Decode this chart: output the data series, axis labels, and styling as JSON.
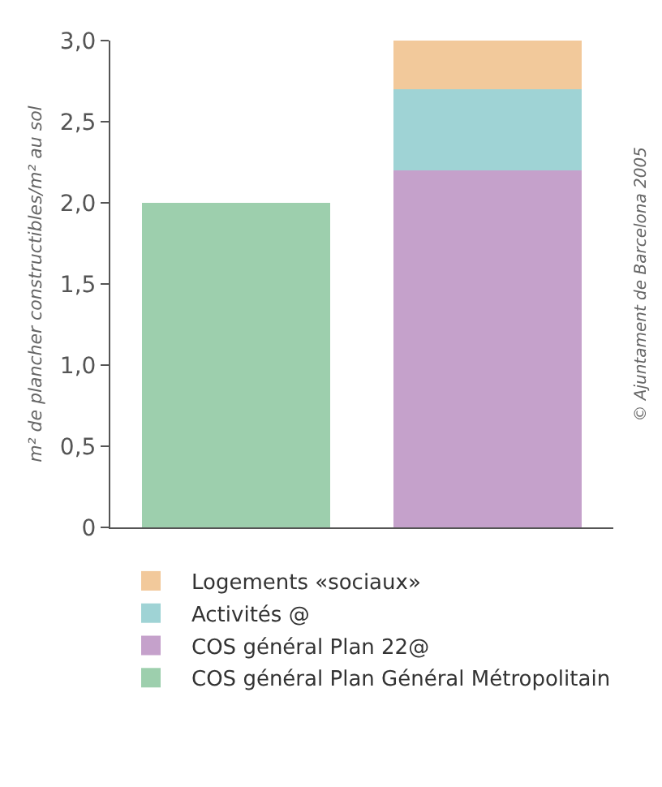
{
  "chart_data": {
    "type": "bar",
    "stacked": true,
    "categories": [
      null,
      null
    ],
    "ylabel": "m² de plancher constructibles/m² au sol",
    "ylim": [
      0,
      3.0
    ],
    "yticks": [
      0,
      {
        "value": 0.5,
        "label": "0,5"
      },
      {
        "value": 1,
        "label": "1,0"
      },
      {
        "value": 1.5,
        "label": "1,5"
      },
      {
        "value": 2,
        "label": "2,0"
      },
      {
        "value": 2.5,
        "label": "2,5"
      },
      {
        "value": 3,
        "label": "3,0"
      }
    ],
    "series": [
      {
        "name": "COS général Plan Général Métropolitain",
        "color": "#9dcfad",
        "values": [
          2.0,
          null
        ]
      },
      {
        "name": "COS général Plan 22@",
        "color": "#c5a1cb",
        "values": [
          null,
          2.2
        ]
      },
      {
        "name": "Activités @",
        "color": "#9fd3d5",
        "values": [
          null,
          0.5
        ]
      },
      {
        "name": "Logements «sociaux»",
        "color": "#f2c99b",
        "values": [
          null,
          0.3
        ]
      }
    ],
    "annotations": [
      "© Ajuntament de Barcelona 2005"
    ],
    "grid": false,
    "legend": "bottom"
  }
}
